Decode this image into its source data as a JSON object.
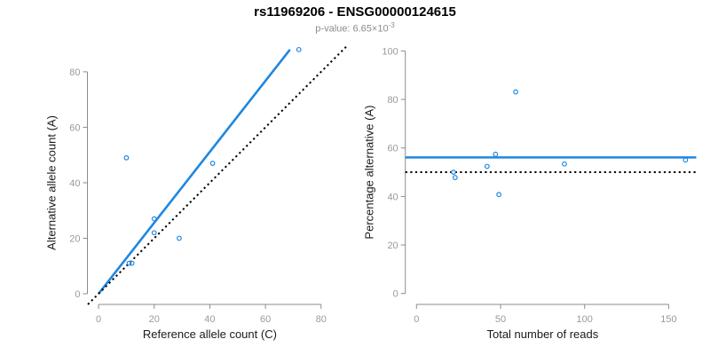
{
  "header": {
    "title": "rs11969206 - ENSG00000124615",
    "subtitle_text": "p-value: 6.65×10",
    "subtitle_exponent": "-3"
  },
  "colors": {
    "accent_blue": "#1F87E0",
    "reference_black": "#000000",
    "axis_line": "#8C8C8C",
    "tick_label": "#9A9A9A",
    "axis_title": "#1A1A1A",
    "title": "#000000",
    "subtitle_gray": "#8C8C8C"
  },
  "chart_data": [
    {
      "type": "scatter",
      "title": "",
      "xlabel": "Reference allele count (C)",
      "ylabel": "Alternative allele count (A)",
      "x_ticks": [
        0,
        20,
        40,
        60,
        80
      ],
      "y_ticks": [
        0,
        20,
        40,
        60,
        80
      ],
      "xlim": [
        0,
        88
      ],
      "ylim": [
        0,
        91
      ],
      "grid": false,
      "points": [
        [
          10,
          49
        ],
        [
          41,
          47
        ],
        [
          72,
          88
        ],
        [
          20,
          27
        ],
        [
          20,
          22
        ],
        [
          29,
          20
        ],
        [
          11,
          11
        ],
        [
          12,
          11
        ]
      ],
      "lines": [
        {
          "name": "fit-line",
          "slope": 1.279,
          "intercept": 0,
          "x_from": 0,
          "x_to": 68.8,
          "style": "solid",
          "color": "blue"
        },
        {
          "name": "identity-line",
          "identity": true,
          "slope": 1,
          "intercept": 0,
          "style": "dotted",
          "color": "black"
        }
      ]
    },
    {
      "type": "scatter",
      "title": "",
      "xlabel": "Total number of reads",
      "ylabel": "Percentage alternative (A)",
      "x_ticks": [
        0,
        50,
        100,
        150
      ],
      "y_ticks": [
        0,
        20,
        40,
        60,
        80,
        100
      ],
      "xlim": [
        0,
        166
      ],
      "ylim": [
        0,
        105
      ],
      "grid": false,
      "points": [
        [
          59,
          83.1
        ],
        [
          88,
          53.4
        ],
        [
          160,
          55
        ],
        [
          47,
          57.4
        ],
        [
          42,
          52.4
        ],
        [
          49,
          40.8
        ],
        [
          22,
          50
        ],
        [
          23,
          47.8
        ]
      ],
      "lines": [
        {
          "name": "fit-line",
          "hline": 56.1,
          "style": "solid",
          "color": "blue"
        },
        {
          "name": "null-line",
          "hline": 50,
          "style": "dotted",
          "color": "black"
        }
      ]
    }
  ]
}
